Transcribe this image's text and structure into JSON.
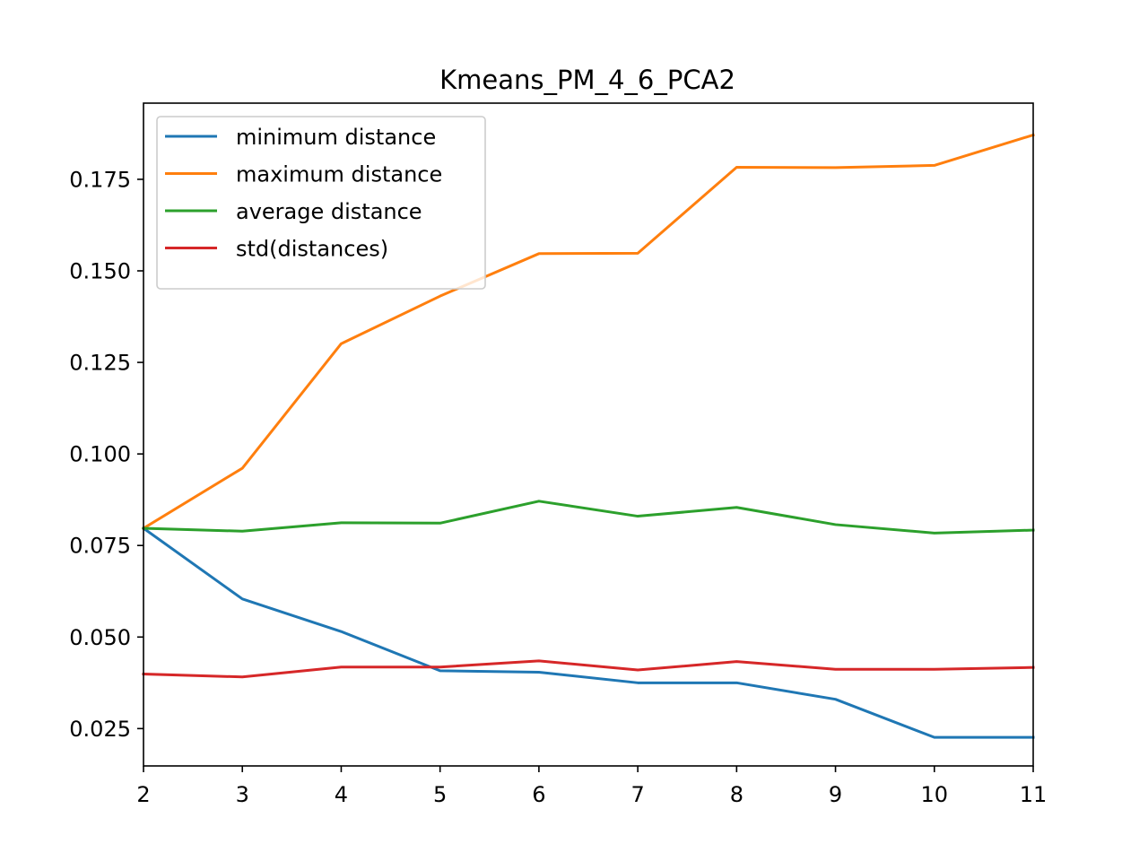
{
  "chart_data": {
    "type": "line",
    "title": "Kmeans_PM_4_6_PCA2",
    "xlabel": "",
    "ylabel": "",
    "x": [
      2,
      3,
      4,
      5,
      6,
      7,
      8,
      9,
      10,
      11
    ],
    "xlim": [
      2,
      11
    ],
    "ylim": [
      0.0148,
      0.1958
    ],
    "xticks": [
      2,
      3,
      4,
      5,
      6,
      7,
      8,
      9,
      10,
      11
    ],
    "xtick_labels": [
      "2",
      "3",
      "4",
      "5",
      "6",
      "7",
      "8",
      "9",
      "10",
      "11"
    ],
    "yticks": [
      0.025,
      0.05,
      0.075,
      0.1,
      0.125,
      0.15,
      0.175
    ],
    "ytick_labels": [
      "0.025",
      "0.050",
      "0.075",
      "0.100",
      "0.125",
      "0.150",
      "0.175"
    ],
    "grid": false,
    "legend_position": "upper-left",
    "series": [
      {
        "name": "minimum distance",
        "color": "#1f77b4",
        "values": [
          0.0797,
          0.0604,
          0.0515,
          0.0408,
          0.0404,
          0.0375,
          0.0375,
          0.033,
          0.0226,
          0.0226
        ]
      },
      {
        "name": "maximum distance",
        "color": "#ff7f0e",
        "values": [
          0.0797,
          0.0961,
          0.1301,
          0.1431,
          0.1547,
          0.1548,
          0.1783,
          0.1782,
          0.1788,
          0.1871
        ]
      },
      {
        "name": "average distance",
        "color": "#2ca02c",
        "values": [
          0.0797,
          0.0789,
          0.0812,
          0.0811,
          0.0871,
          0.083,
          0.0854,
          0.0807,
          0.0784,
          0.0792
        ]
      },
      {
        "name": "std(distances)",
        "color": "#d62728",
        "values": [
          0.0399,
          0.0391,
          0.0418,
          0.0418,
          0.0435,
          0.041,
          0.0433,
          0.0412,
          0.0412,
          0.0417
        ]
      }
    ]
  }
}
